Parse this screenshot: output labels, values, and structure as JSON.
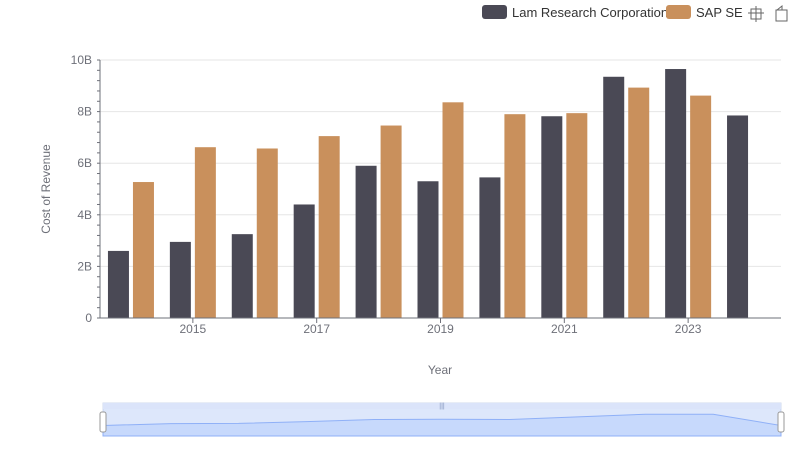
{
  "chart_data": {
    "type": "bar",
    "xlabel": "Year",
    "ylabel": "Cost of Revenue",
    "ylim": [
      0,
      10000000000
    ],
    "y_ticks": [
      {
        "value": 0,
        "label": "0"
      },
      {
        "value": 2000000000,
        "label": "2B"
      },
      {
        "value": 4000000000,
        "label": "4B"
      },
      {
        "value": 6000000000,
        "label": "6B"
      },
      {
        "value": 8000000000,
        "label": "8B"
      },
      {
        "value": 10000000000,
        "label": "10B"
      }
    ],
    "categories": [
      "2014",
      "2015",
      "2016",
      "2017",
      "2018",
      "2019",
      "2020",
      "2021",
      "2022",
      "2023",
      "2024"
    ],
    "x_tick_labels": [
      "2015",
      "2017",
      "2019",
      "2021",
      "2023"
    ],
    "series": [
      {
        "name": "Lam Research Corporation",
        "color": "#4a4955",
        "values": [
          2600000000,
          2950000000,
          3250000000,
          4400000000,
          5900000000,
          5300000000,
          5450000000,
          7820000000,
          9350000000,
          9650000000,
          7850000000
        ]
      },
      {
        "name": "SAP SE",
        "color": "#c9905c",
        "values": [
          5270000000,
          6620000000,
          6570000000,
          7050000000,
          7460000000,
          8360000000,
          7900000000,
          7940000000,
          8930000000,
          8620000000,
          null
        ]
      }
    ],
    "legend_position": "top-right",
    "grid": true
  },
  "toolbox": {
    "zoom_icon": "zoom-icon",
    "restore_icon": "restore-icon"
  },
  "datazoom": {
    "handle_label": "|||"
  }
}
